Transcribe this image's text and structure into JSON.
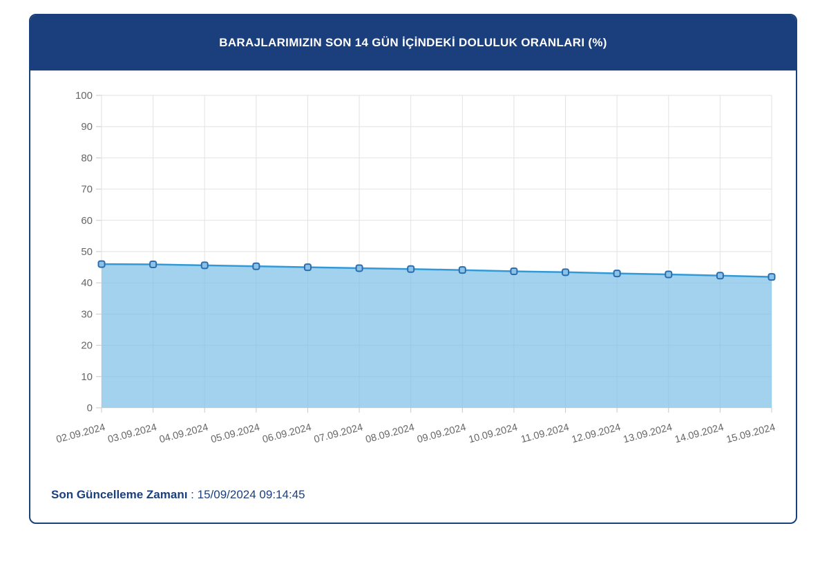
{
  "header": {
    "title": "BARAJLARIMIZIN SON 14 GÜN İÇİNDEKİ DOLULUK ORANLARI (%)",
    "background": "#1b3f7c",
    "text_color": "#ffffff"
  },
  "footer": {
    "label": "Son Güncelleme Zamanı",
    "separator": " : ",
    "value": "15/09/2024 09:14:45"
  },
  "chart_data": {
    "type": "area",
    "title": "BARAJLARIMIZIN SON 14 GÜN İÇİNDEKİ DOLULUK ORANLARI (%)",
    "xlabel": "",
    "ylabel": "",
    "categories": [
      "02.09.2024",
      "03.09.2024",
      "04.09.2024",
      "05.09.2024",
      "06.09.2024",
      "07.09.2024",
      "08.09.2024",
      "09.09.2024",
      "10.09.2024",
      "11.09.2024",
      "12.09.2024",
      "13.09.2024",
      "14.09.2024",
      "15.09.2024"
    ],
    "values": [
      46.0,
      45.9,
      45.6,
      45.3,
      45.0,
      44.7,
      44.4,
      44.1,
      43.7,
      43.4,
      43.0,
      42.7,
      42.3,
      41.9
    ],
    "ylim": [
      0,
      100
    ],
    "ytick_step": 10,
    "grid": true,
    "legend": "none",
    "x_label_rotation": -15,
    "colors": {
      "line": "#3399d6",
      "area_fill": "#7bbfe7",
      "area_opacity": 0.7,
      "marker_fill": "#8ac2e8",
      "marker_stroke": "#2b6cad",
      "grid": "#e2e2e2",
      "tick": "#c8c8c8",
      "axis_label": "#666666"
    }
  }
}
